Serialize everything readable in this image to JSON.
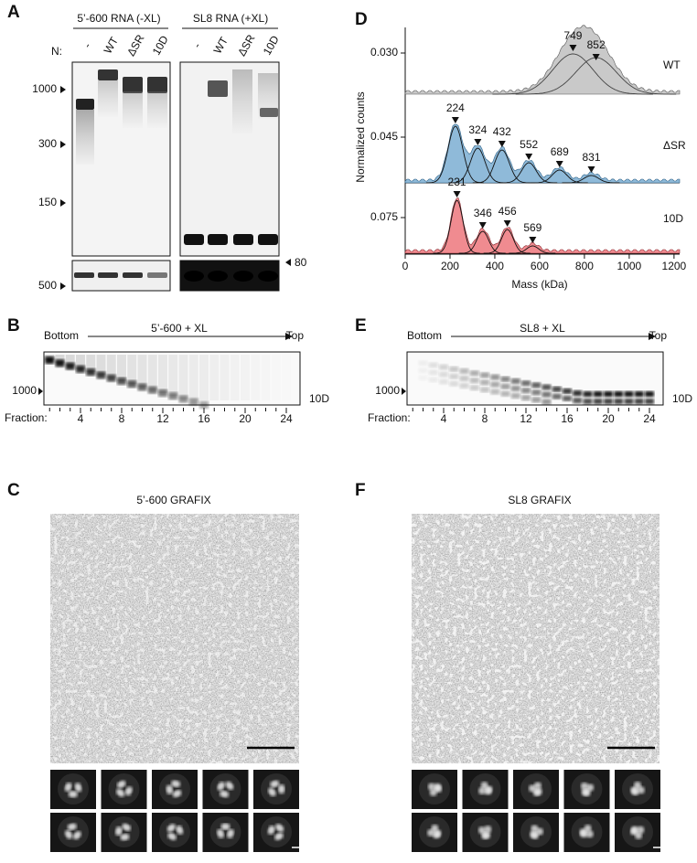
{
  "panel_a": {
    "label": "A",
    "groups": [
      {
        "title": "5’-600 RNA (-XL)",
        "lanes": [
          "-",
          "WT",
          "ΔSR",
          "10D"
        ]
      },
      {
        "title": "SL8 RNA (+XL)",
        "lanes": [
          "-",
          "WT",
          "ΔSR",
          "10D"
        ]
      }
    ],
    "lane_prefix": "N:",
    "markers": [
      "1000",
      "300",
      "150",
      "500"
    ],
    "marker_right": "80"
  },
  "panel_b": {
    "label": "B",
    "start": "Bottom",
    "title": "5’-600 + XL",
    "end": "Top",
    "marker": "1000",
    "sample": "10D",
    "axis_label": "Fraction:",
    "ticks": [
      4,
      8,
      12,
      16,
      20,
      24
    ]
  },
  "panel_c": {
    "label": "C",
    "title": "5’-600 GRAFIX"
  },
  "panel_d": {
    "label": "D",
    "y_label": "Normalized counts",
    "x_label": "Mass (kDa)",
    "xlim": [
      0,
      1225
    ],
    "xticks": [
      0,
      200,
      400,
      600,
      800,
      1000,
      1200
    ],
    "rows": [
      {
        "name": "WT",
        "ytick": {
          "value": 0.03,
          "label": "0.030"
        },
        "peaks": [
          749,
          852
        ]
      },
      {
        "name": "ΔSR",
        "ytick": {
          "value": 0.045,
          "label": "0.045"
        },
        "peaks": [
          224,
          324,
          432,
          552,
          689,
          831
        ]
      },
      {
        "name": "10D",
        "ytick": {
          "value": 0.075,
          "label": "0.075"
        },
        "peaks": [
          231,
          346,
          456,
          569
        ]
      }
    ]
  },
  "panel_e": {
    "label": "E",
    "start": "Bottom",
    "title": "SL8 + XL",
    "end": "Top",
    "marker": "1000",
    "sample": "10D",
    "axis_label": "Fraction:",
    "ticks": [
      4,
      8,
      12,
      16,
      20,
      24
    ]
  },
  "panel_f": {
    "label": "F",
    "title": "SL8 GRAFIX"
  }
}
